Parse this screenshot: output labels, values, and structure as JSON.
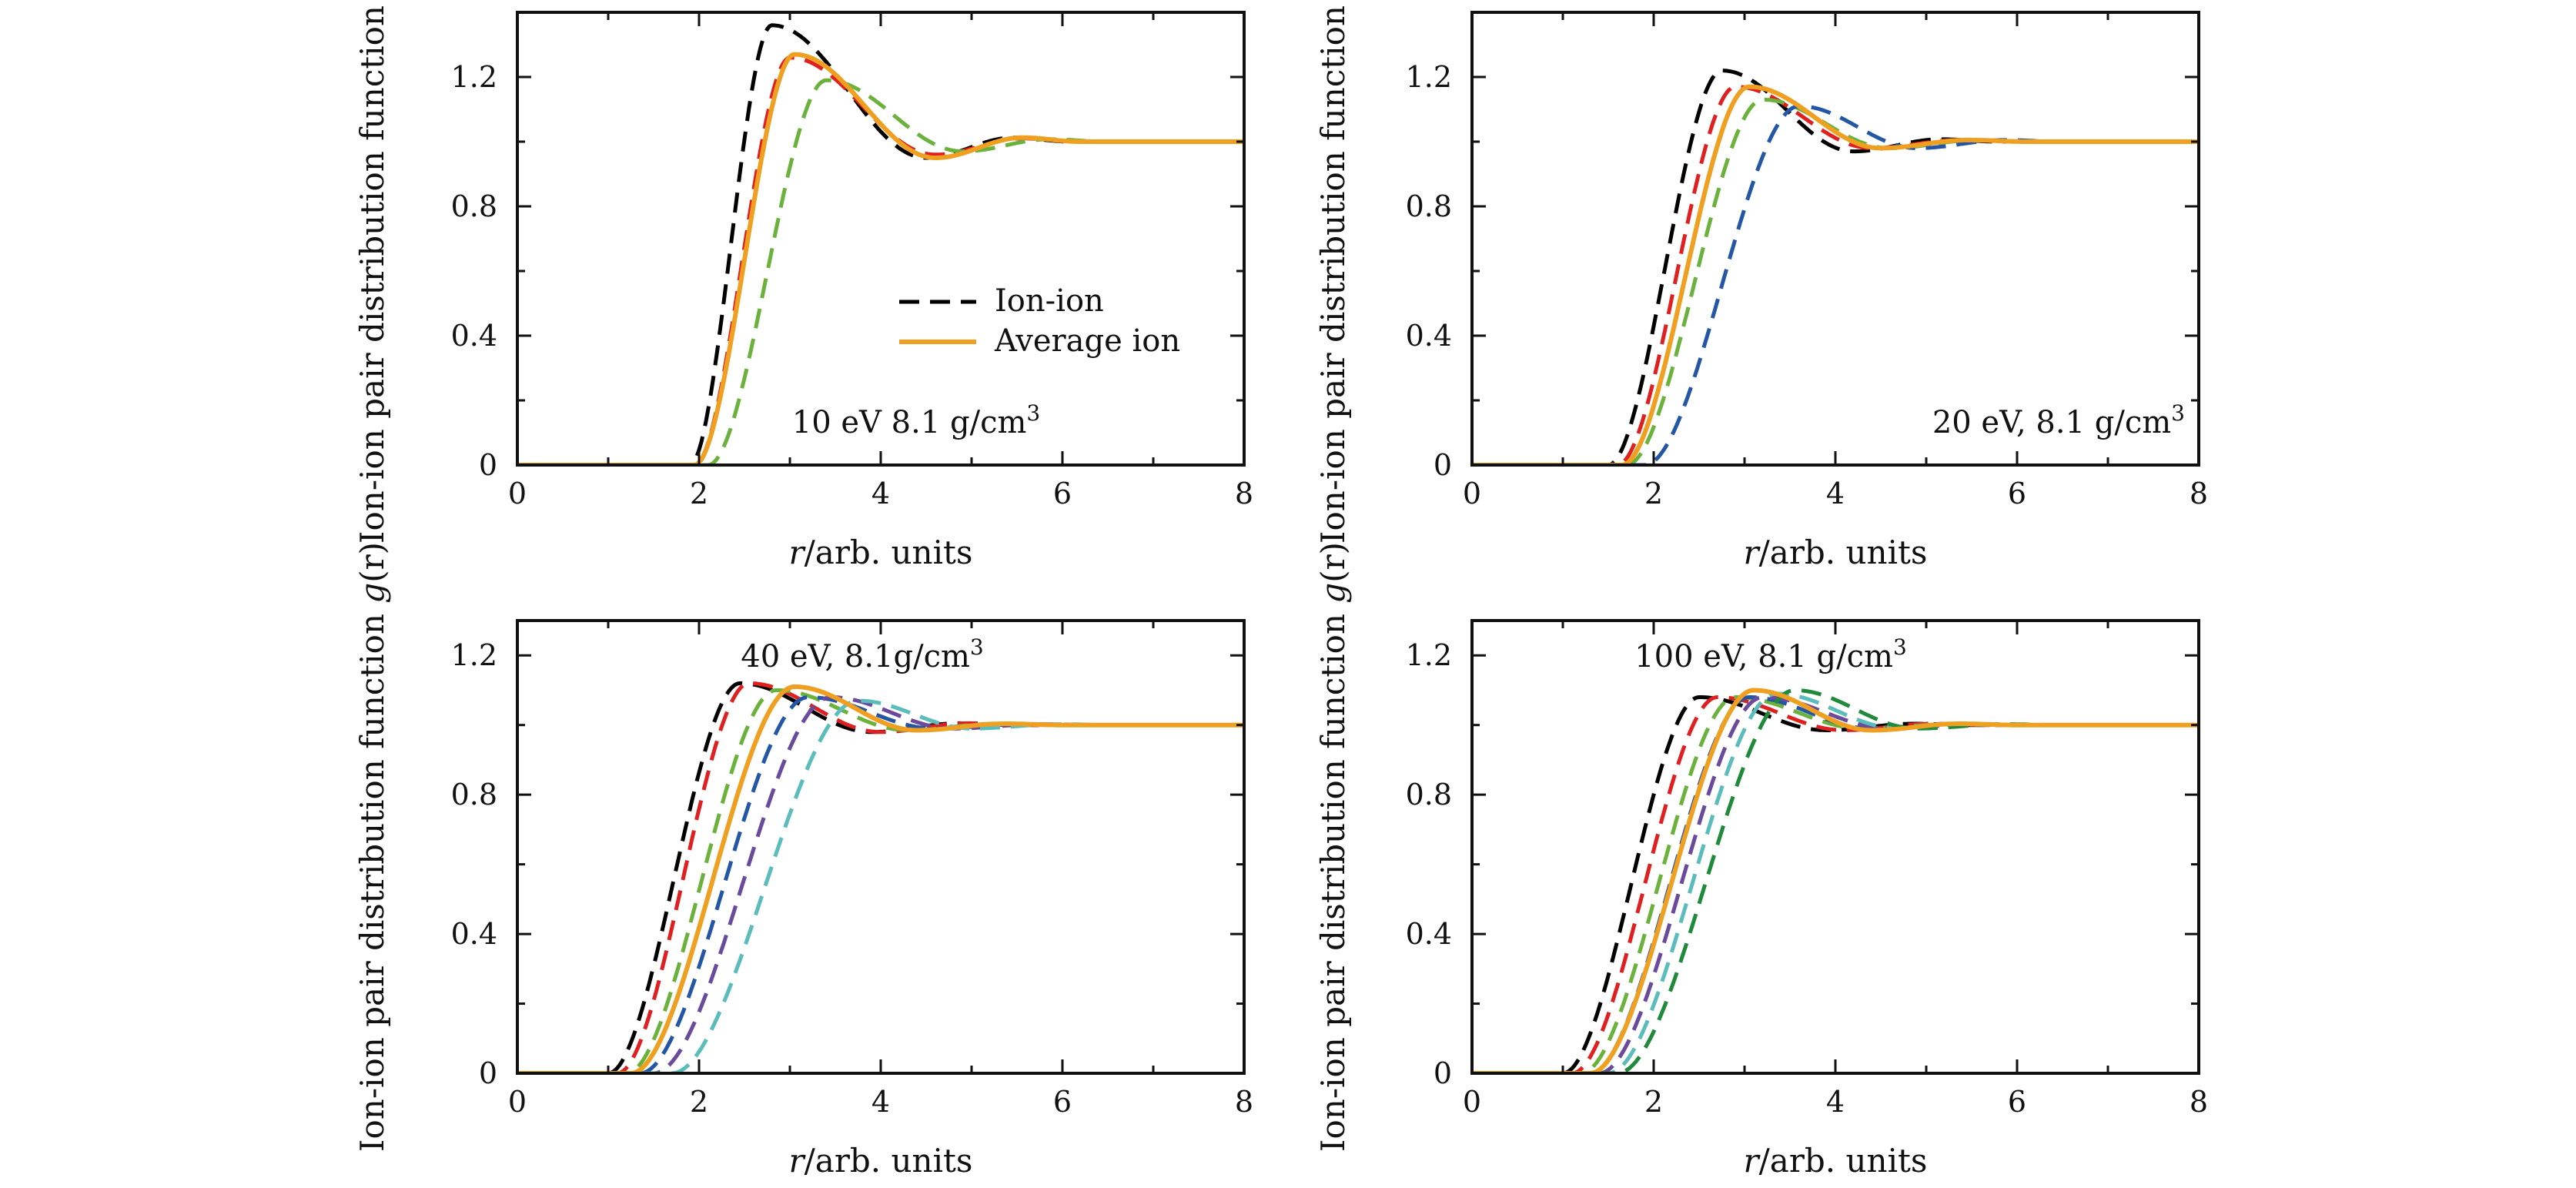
{
  "figure": {
    "ylabel": "Ion-ion pair distribution function g(r)",
    "ylabel_prefix": "Ion-ion pair distribution function ",
    "ylabel_italic": "g",
    "ylabel_paren": "(r)"
  },
  "legend": {
    "items": [
      {
        "label": "Ion-ion",
        "style": "dashed",
        "color": "#000000"
      },
      {
        "label": "Average ion",
        "style": "solid",
        "color": "#f0a020"
      }
    ]
  },
  "chart_data": [
    {
      "type": "line",
      "panel": "top-left",
      "annotation": "10 eV 8.1 g/cm³",
      "xlabel": "r/arb. units",
      "xlabel_italic": "r",
      "xlabel_rest": "/arb. units",
      "xlim": [
        0,
        8
      ],
      "ylim": [
        0,
        1.4
      ],
      "xticks": [
        0,
        2,
        4,
        6,
        8
      ],
      "yticks": [
        0,
        0.4,
        0.8,
        1.2
      ],
      "ytick_labels": [
        "0",
        "0.4",
        "0.8",
        "1.2"
      ],
      "series": [
        {
          "name": "Ion-ion (black)",
          "style": "dashed",
          "color": "#000000",
          "r0": 1.9,
          "rpk": 2.8,
          "peak": 1.36,
          "dip": 0.95,
          "rdip": 4.5
        },
        {
          "name": "Ion-ion (red)",
          "style": "dashed",
          "color": "#e02020",
          "r0": 1.95,
          "rpk": 3.0,
          "peak": 1.26,
          "dip": 0.96,
          "rdip": 4.6
        },
        {
          "name": "Ion-ion (green)",
          "style": "dashed",
          "color": "#6ab23c",
          "r0": 2.1,
          "rpk": 3.4,
          "peak": 1.19,
          "dip": 0.97,
          "rdip": 4.9
        },
        {
          "name": "Average ion",
          "style": "solid",
          "color": "#f0a020",
          "r0": 1.95,
          "rpk": 3.05,
          "peak": 1.27,
          "dip": 0.95,
          "rdip": 4.6
        }
      ]
    },
    {
      "type": "line",
      "panel": "top-right",
      "annotation": "20 eV, 8.1 g/cm³",
      "xlabel": "r/arb. units",
      "xlabel_italic": "r",
      "xlabel_rest": "/arb. units",
      "xlim": [
        0,
        8
      ],
      "ylim": [
        0,
        1.4
      ],
      "xticks": [
        0,
        2,
        4,
        6,
        8
      ],
      "yticks": [
        0,
        0.4,
        0.8,
        1.2
      ],
      "ytick_labels": [
        "0",
        "0.4",
        "0.8",
        "1.2"
      ],
      "series": [
        {
          "name": "Ion-ion (black)",
          "style": "dashed",
          "color": "#000000",
          "r0": 1.5,
          "rpk": 2.75,
          "peak": 1.22,
          "dip": 0.97,
          "rdip": 4.2
        },
        {
          "name": "Ion-ion (red)",
          "style": "dashed",
          "color": "#e02020",
          "r0": 1.6,
          "rpk": 2.9,
          "peak": 1.17,
          "dip": 0.98,
          "rdip": 4.4
        },
        {
          "name": "Ion-ion (green)",
          "style": "dashed",
          "color": "#6ab23c",
          "r0": 1.7,
          "rpk": 3.2,
          "peak": 1.13,
          "dip": 0.98,
          "rdip": 4.6
        },
        {
          "name": "Ion-ion (blue)",
          "style": "dashed",
          "color": "#2456a6",
          "r0": 1.9,
          "rpk": 3.6,
          "peak": 1.11,
          "dip": 0.98,
          "rdip": 4.9
        },
        {
          "name": "Average ion",
          "style": "solid",
          "color": "#f0a020",
          "r0": 1.65,
          "rpk": 3.05,
          "peak": 1.17,
          "dip": 0.98,
          "rdip": 4.5
        }
      ]
    },
    {
      "type": "line",
      "panel": "bottom-left",
      "annotation": "40 eV,  8.1g/cm³",
      "xlabel": "r/arb. units",
      "xlabel_italic": "r",
      "xlabel_rest": "/arb. units",
      "xlim": [
        0,
        8
      ],
      "ylim": [
        0,
        1.3
      ],
      "xticks": [
        0,
        2,
        4,
        6,
        8
      ],
      "yticks": [
        0,
        0.4,
        0.8,
        1.2
      ],
      "ytick_labels": [
        "0",
        "0.4",
        "0.8",
        "1.2"
      ],
      "series": [
        {
          "name": "Ion-ion (black)",
          "style": "dashed",
          "color": "#000000",
          "r0": 1.0,
          "rpk": 2.45,
          "peak": 1.12,
          "dip": 0.98,
          "rdip": 3.9
        },
        {
          "name": "Ion-ion (red)",
          "style": "dashed",
          "color": "#e02020",
          "r0": 1.1,
          "rpk": 2.55,
          "peak": 1.12,
          "dip": 0.98,
          "rdip": 4.0
        },
        {
          "name": "Ion-ion (green)",
          "style": "dashed",
          "color": "#6ab23c",
          "r0": 1.2,
          "rpk": 2.85,
          "peak": 1.1,
          "dip": 0.985,
          "rdip": 4.3
        },
        {
          "name": "Ion-ion (blue)",
          "style": "dashed",
          "color": "#2456a6",
          "r0": 1.35,
          "rpk": 3.2,
          "peak": 1.08,
          "dip": 0.99,
          "rdip": 4.6
        },
        {
          "name": "Ion-ion (purple)",
          "style": "dashed",
          "color": "#6a4a9c",
          "r0": 1.5,
          "rpk": 3.45,
          "peak": 1.08,
          "dip": 0.99,
          "rdip": 4.8
        },
        {
          "name": "Ion-ion (cyan)",
          "style": "dashed",
          "color": "#5bbcbc",
          "r0": 1.7,
          "rpk": 3.75,
          "peak": 1.07,
          "dip": 0.99,
          "rdip": 5.0
        },
        {
          "name": "Average ion",
          "style": "solid",
          "color": "#f0a020",
          "r0": 1.25,
          "rpk": 3.05,
          "peak": 1.11,
          "dip": 0.985,
          "rdip": 4.4
        }
      ]
    },
    {
      "type": "line",
      "panel": "bottom-right",
      "annotation": "100 eV,  8.1 g/cm³",
      "xlabel": "r/arb. units",
      "xlabel_italic": "r",
      "xlabel_rest": "/arb. units",
      "xlim": [
        0,
        8
      ],
      "ylim": [
        0,
        1.3
      ],
      "xticks": [
        0,
        2,
        4,
        6,
        8
      ],
      "yticks": [
        0,
        0.4,
        0.8,
        1.2
      ],
      "ytick_labels": [
        "0",
        "0.4",
        "0.8",
        "1.2"
      ],
      "series": [
        {
          "name": "Ion-ion (black)",
          "style": "dashed",
          "color": "#000000",
          "r0": 1.0,
          "rpk": 2.5,
          "peak": 1.08,
          "dip": 0.985,
          "rdip": 3.9
        },
        {
          "name": "Ion-ion (red)",
          "style": "dashed",
          "color": "#e02020",
          "r0": 1.1,
          "rpk": 2.7,
          "peak": 1.08,
          "dip": 0.985,
          "rdip": 4.1
        },
        {
          "name": "Ion-ion (green)",
          "style": "dashed",
          "color": "#6ab23c",
          "r0": 1.2,
          "rpk": 2.9,
          "peak": 1.08,
          "dip": 0.99,
          "rdip": 4.3
        },
        {
          "name": "Ion-ion (blue)",
          "style": "dashed",
          "color": "#2456a6",
          "r0": 1.3,
          "rpk": 3.05,
          "peak": 1.08,
          "dip": 0.99,
          "rdip": 4.4
        },
        {
          "name": "Ion-ion (purple)",
          "style": "dashed",
          "color": "#6a4a9c",
          "r0": 1.4,
          "rpk": 3.2,
          "peak": 1.08,
          "dip": 0.99,
          "rdip": 4.6
        },
        {
          "name": "Ion-ion (cyan)",
          "style": "dashed",
          "color": "#5bbcbc",
          "r0": 1.5,
          "rpk": 3.35,
          "peak": 1.09,
          "dip": 0.99,
          "rdip": 4.7
        },
        {
          "name": "Ion-ion (dark green)",
          "style": "dashed",
          "color": "#1f8a3a",
          "r0": 1.6,
          "rpk": 3.55,
          "peak": 1.1,
          "dip": 0.99,
          "rdip": 4.9
        },
        {
          "name": "Average ion",
          "style": "solid",
          "color": "#f0a020",
          "r0": 1.3,
          "rpk": 3.1,
          "peak": 1.1,
          "dip": 0.985,
          "rdip": 4.4
        }
      ]
    }
  ]
}
